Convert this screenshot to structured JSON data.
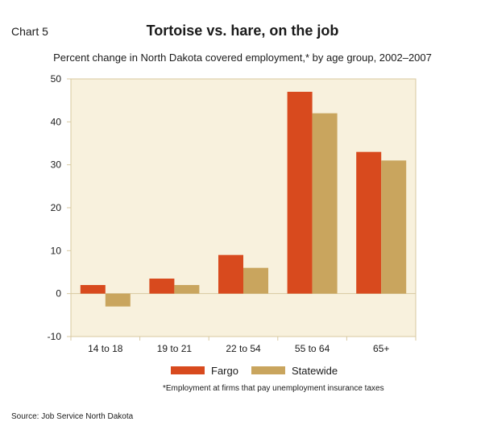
{
  "chart_number": "Chart 5",
  "footnote": "*Employment at firms that pay unemployment insurance taxes",
  "source": "Source: Job Service North Dakota",
  "chart_data": {
    "type": "bar",
    "title": "Tortoise vs. hare, on the job",
    "subtitle": "Percent change in North Dakota covered employment,* by age group, 2002–2007",
    "categories": [
      "14 to 18",
      "19 to 21",
      "22 to 54",
      "55 to 64",
      "65+"
    ],
    "series": [
      {
        "name": "Fargo",
        "values": [
          2,
          3.5,
          9,
          47,
          33
        ],
        "color": "#d84a1e"
      },
      {
        "name": "Statewide",
        "values": [
          -3,
          2,
          6,
          42,
          31
        ],
        "color": "#c9a55e"
      }
    ],
    "ylim": [
      -10,
      50
    ],
    "yticks": [
      -10,
      0,
      10,
      20,
      30,
      40,
      50
    ],
    "yticklabels": [
      "-10",
      "0",
      "10",
      "20",
      "30",
      "40",
      "50"
    ],
    "xlabel": "",
    "ylabel": "",
    "grid": false,
    "legend_position": "bottom",
    "plot_background": "#f8f1dd",
    "axis_color": "#d8c9a0"
  }
}
